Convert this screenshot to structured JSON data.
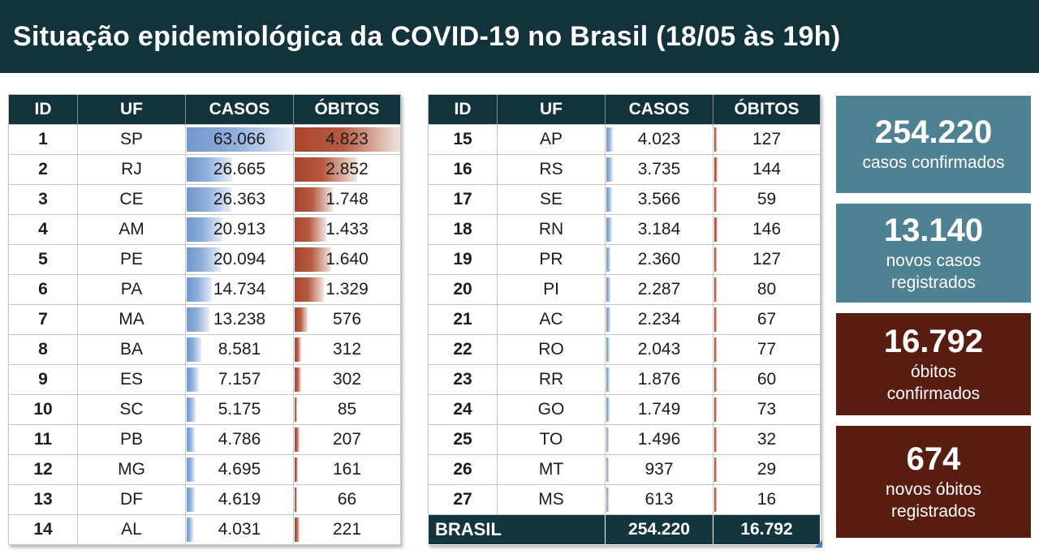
{
  "header": {
    "title": "Situação epidemiológica da COVID-19 no Brasil (18/05 às 19h)"
  },
  "colors": {
    "header_bg": "#12333b",
    "table_header_bg": "#12333b",
    "total_row_bg": "#13363e",
    "card_teal": "#4e8192",
    "card_red": "#591c11",
    "bar_blue": "#7297cb",
    "bar_red": "#a9462c",
    "grid_gray": "#c6c6c6",
    "text_dark": "#1c1c1c"
  },
  "chart_data": {
    "type": "table",
    "title": "Situação epidemiológica da COVID-19 no Brasil (18/05 às 19h)",
    "columns": [
      "ID",
      "UF",
      "CASOS",
      "ÓBITOS"
    ],
    "bar_scale": {
      "casos_max": 63066,
      "obitos_max": 4823
    },
    "split_index": 14,
    "rows": [
      {
        "id": "1",
        "uf": "SP",
        "casos": 63066,
        "casos_text": "63.066",
        "obitos": 4823,
        "obitos_text": "4.823"
      },
      {
        "id": "2",
        "uf": "RJ",
        "casos": 26665,
        "casos_text": "26.665",
        "obitos": 2852,
        "obitos_text": "2.852"
      },
      {
        "id": "3",
        "uf": "CE",
        "casos": 26363,
        "casos_text": "26.363",
        "obitos": 1748,
        "obitos_text": "1.748"
      },
      {
        "id": "4",
        "uf": "AM",
        "casos": 20913,
        "casos_text": "20.913",
        "obitos": 1433,
        "obitos_text": "1.433"
      },
      {
        "id": "5",
        "uf": "PE",
        "casos": 20094,
        "casos_text": "20.094",
        "obitos": 1640,
        "obitos_text": "1.640"
      },
      {
        "id": "6",
        "uf": "PA",
        "casos": 14734,
        "casos_text": "14.734",
        "obitos": 1329,
        "obitos_text": "1.329"
      },
      {
        "id": "7",
        "uf": "MA",
        "casos": 13238,
        "casos_text": "13.238",
        "obitos": 576,
        "obitos_text": "576"
      },
      {
        "id": "8",
        "uf": "BA",
        "casos": 8581,
        "casos_text": "8.581",
        "obitos": 312,
        "obitos_text": "312"
      },
      {
        "id": "9",
        "uf": "ES",
        "casos": 7157,
        "casos_text": "7.157",
        "obitos": 302,
        "obitos_text": "302"
      },
      {
        "id": "10",
        "uf": "SC",
        "casos": 5175,
        "casos_text": "5.175",
        "obitos": 85,
        "obitos_text": "85"
      },
      {
        "id": "11",
        "uf": "PB",
        "casos": 4786,
        "casos_text": "4.786",
        "obitos": 207,
        "obitos_text": "207"
      },
      {
        "id": "12",
        "uf": "MG",
        "casos": 4695,
        "casos_text": "4.695",
        "obitos": 161,
        "obitos_text": "161"
      },
      {
        "id": "13",
        "uf": "DF",
        "casos": 4619,
        "casos_text": "4.619",
        "obitos": 66,
        "obitos_text": "66"
      },
      {
        "id": "14",
        "uf": "AL",
        "casos": 4031,
        "casos_text": "4.031",
        "obitos": 221,
        "obitos_text": "221"
      },
      {
        "id": "15",
        "uf": "AP",
        "casos": 4023,
        "casos_text": "4.023",
        "obitos": 127,
        "obitos_text": "127"
      },
      {
        "id": "16",
        "uf": "RS",
        "casos": 3735,
        "casos_text": "3.735",
        "obitos": 144,
        "obitos_text": "144"
      },
      {
        "id": "17",
        "uf": "SE",
        "casos": 3566,
        "casos_text": "3.566",
        "obitos": 59,
        "obitos_text": "59"
      },
      {
        "id": "18",
        "uf": "RN",
        "casos": 3184,
        "casos_text": "3.184",
        "obitos": 146,
        "obitos_text": "146"
      },
      {
        "id": "19",
        "uf": "PR",
        "casos": 2360,
        "casos_text": "2.360",
        "obitos": 127,
        "obitos_text": "127"
      },
      {
        "id": "20",
        "uf": "PI",
        "casos": 2287,
        "casos_text": "2.287",
        "obitos": 80,
        "obitos_text": "80"
      },
      {
        "id": "21",
        "uf": "AC",
        "casos": 2234,
        "casos_text": "2.234",
        "obitos": 67,
        "obitos_text": "67"
      },
      {
        "id": "22",
        "uf": "RO",
        "casos": 2043,
        "casos_text": "2.043",
        "obitos": 77,
        "obitos_text": "77"
      },
      {
        "id": "23",
        "uf": "RR",
        "casos": 1876,
        "casos_text": "1.876",
        "obitos": 60,
        "obitos_text": "60"
      },
      {
        "id": "24",
        "uf": "GO",
        "casos": 1749,
        "casos_text": "1.749",
        "obitos": 73,
        "obitos_text": "73"
      },
      {
        "id": "25",
        "uf": "TO",
        "casos": 1496,
        "casos_text": "1.496",
        "obitos": 32,
        "obitos_text": "32"
      },
      {
        "id": "26",
        "uf": "MT",
        "casos": 937,
        "casos_text": "937",
        "obitos": 29,
        "obitos_text": "29"
      },
      {
        "id": "27",
        "uf": "MS",
        "casos": 613,
        "casos_text": "613",
        "obitos": 16,
        "obitos_text": "16"
      }
    ],
    "total_row": {
      "label": "BRASIL",
      "casos_text": "254.220",
      "obitos_text": "16.792"
    },
    "summary_cards": [
      {
        "value": "254.220",
        "label_lines": [
          "casos confirmados"
        ],
        "style": "teal"
      },
      {
        "value": "13.140",
        "label_lines": [
          "novos casos",
          "registrados"
        ],
        "style": "teal"
      },
      {
        "value": "16.792",
        "label_lines": [
          "óbitos",
          "confirmados"
        ],
        "style": "red"
      },
      {
        "value": "674",
        "label_lines": [
          "novos óbitos",
          "registrados"
        ],
        "style": "red"
      }
    ]
  }
}
